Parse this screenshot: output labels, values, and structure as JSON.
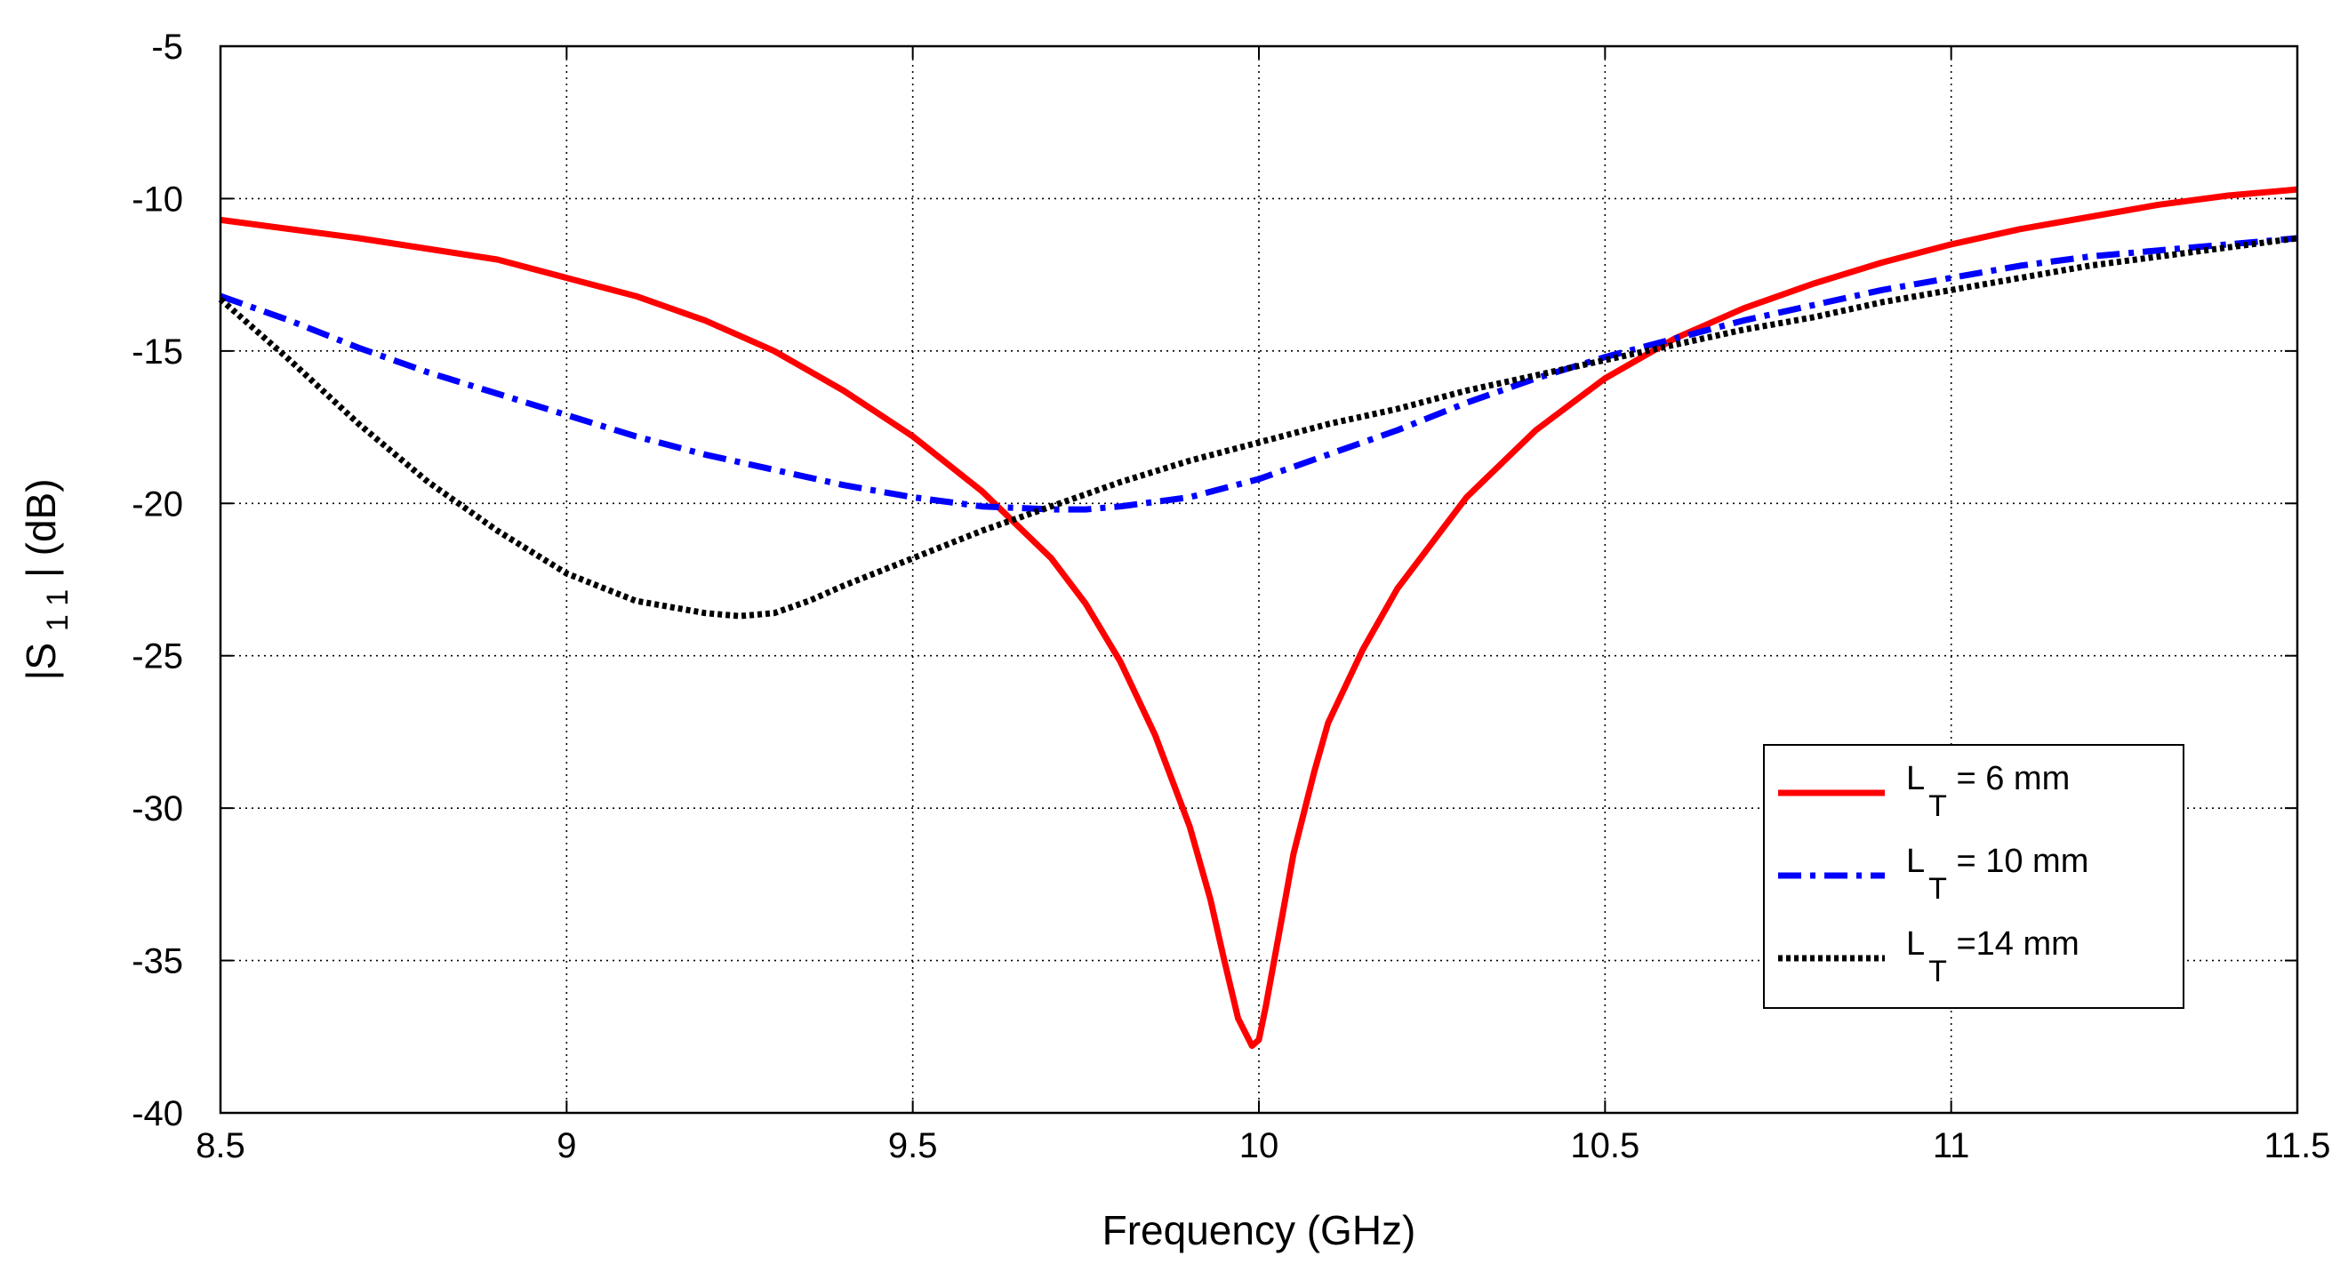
{
  "chart_data": {
    "type": "line",
    "title": "",
    "xlabel": "Frequency (GHz)",
    "ylabel_parts": {
      "pre": "|S",
      "sub": "1 1",
      "post": "| (dB)"
    },
    "xlim": [
      8.5,
      11.5
    ],
    "ylim": [
      -40,
      -5
    ],
    "xticks": [
      8.5,
      9,
      9.5,
      10,
      10.5,
      11,
      11.5
    ],
    "xtick_labels": [
      "8.5",
      "9",
      "9.5",
      "10",
      "10.5",
      "11",
      "11.5"
    ],
    "yticks": [
      -40,
      -35,
      -30,
      -25,
      -20,
      -15,
      -10,
      -5
    ],
    "ytick_labels": [
      "-40",
      "-35",
      "-30",
      "-25",
      "-20",
      "-15",
      "-10",
      "-5"
    ],
    "grid": true,
    "legend_position": "bottom-right",
    "series": [
      {
        "name": "L_T = 6 mm",
        "legend_main": "L",
        "legend_sub": "T",
        "legend_rest": " = 6 mm",
        "color": "#ff0000",
        "style": "solid",
        "x": [
          8.5,
          8.7,
          8.9,
          9.0,
          9.1,
          9.2,
          9.3,
          9.4,
          9.5,
          9.6,
          9.7,
          9.75,
          9.8,
          9.85,
          9.9,
          9.93,
          9.95,
          9.97,
          9.99,
          10.0,
          10.01,
          10.03,
          10.05,
          10.08,
          10.1,
          10.15,
          10.2,
          10.3,
          10.4,
          10.5,
          10.6,
          10.7,
          10.8,
          10.9,
          11.0,
          11.1,
          11.2,
          11.3,
          11.4,
          11.5
        ],
        "y": [
          -10.7,
          -11.3,
          -12.0,
          -12.6,
          -13.2,
          -14.0,
          -15.0,
          -16.3,
          -17.8,
          -19.6,
          -21.8,
          -23.3,
          -25.2,
          -27.6,
          -30.6,
          -33.0,
          -35.0,
          -36.9,
          -37.8,
          -37.6,
          -36.5,
          -34.0,
          -31.5,
          -28.8,
          -27.2,
          -24.8,
          -22.8,
          -19.8,
          -17.6,
          -15.9,
          -14.6,
          -13.6,
          -12.8,
          -12.1,
          -11.5,
          -11.0,
          -10.6,
          -10.2,
          -9.9,
          -9.7
        ]
      },
      {
        "name": "L_T = 10 mm",
        "legend_main": "L",
        "legend_sub": "T",
        "legend_rest": " = 10 mm",
        "color": "#0000ff",
        "style": "dashdot",
        "x": [
          8.5,
          8.6,
          8.7,
          8.8,
          8.9,
          9.0,
          9.1,
          9.2,
          9.3,
          9.4,
          9.5,
          9.6,
          9.7,
          9.75,
          9.8,
          9.9,
          10.0,
          10.1,
          10.2,
          10.3,
          10.4,
          10.5,
          10.6,
          10.7,
          10.8,
          10.9,
          11.0,
          11.1,
          11.2,
          11.3,
          11.4,
          11.5
        ],
        "y": [
          -13.2,
          -14.0,
          -14.9,
          -15.7,
          -16.4,
          -17.1,
          -17.8,
          -18.4,
          -18.9,
          -19.4,
          -19.8,
          -20.1,
          -20.2,
          -20.2,
          -20.1,
          -19.8,
          -19.2,
          -18.4,
          -17.6,
          -16.7,
          -15.9,
          -15.2,
          -14.6,
          -14.0,
          -13.5,
          -13.0,
          -12.6,
          -12.2,
          -11.9,
          -11.7,
          -11.5,
          -11.3
        ]
      },
      {
        "name": "L_T =14 mm",
        "legend_main": "L",
        "legend_sub": "T",
        "legend_rest": " =14 mm",
        "color": "#000000",
        "style": "dotted",
        "x": [
          8.5,
          8.6,
          8.7,
          8.8,
          8.9,
          9.0,
          9.1,
          9.2,
          9.25,
          9.3,
          9.35,
          9.4,
          9.5,
          9.6,
          9.7,
          9.8,
          9.9,
          10.0,
          10.1,
          10.2,
          10.3,
          10.4,
          10.5,
          10.6,
          10.7,
          10.8,
          10.9,
          11.0,
          11.1,
          11.2,
          11.3,
          11.4,
          11.5
        ],
        "y": [
          -13.3,
          -15.3,
          -17.4,
          -19.3,
          -20.9,
          -22.3,
          -23.2,
          -23.6,
          -23.7,
          -23.6,
          -23.2,
          -22.7,
          -21.8,
          -20.9,
          -20.1,
          -19.3,
          -18.6,
          -18.0,
          -17.4,
          -16.9,
          -16.3,
          -15.8,
          -15.3,
          -14.8,
          -14.3,
          -13.9,
          -13.4,
          -13.0,
          -12.6,
          -12.2,
          -11.9,
          -11.6,
          -11.3
        ]
      }
    ]
  }
}
